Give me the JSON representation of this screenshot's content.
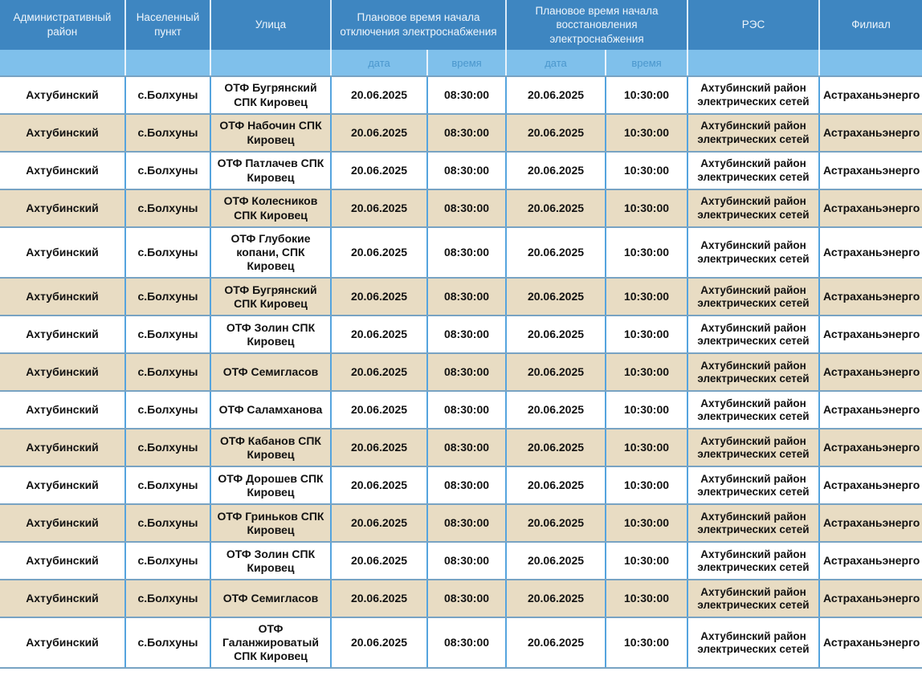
{
  "table": {
    "header": {
      "admin_district": "Административный район",
      "settlement": "Населенный пункт",
      "street": "Улица",
      "outage_group": "Плановое время начала отключения электроснабжения",
      "restore_group": "Плановое время начала восстановления электроснабжения",
      "res": "РЭС",
      "branch": "Филиал",
      "sub_date": "дата",
      "sub_time": "время"
    },
    "rows": [
      {
        "district": "Ахтубинский",
        "settlement": "с.Болхуны",
        "street": "ОТФ Бугрянский СПК Кировец",
        "off_date": "20.06.2025",
        "off_time": "08:30:00",
        "on_date": "20.06.2025",
        "on_time": "10:30:00",
        "res": "Ахтубинский район электрических сетей",
        "branch": "Астраханьэнерго"
      },
      {
        "district": "Ахтубинский",
        "settlement": "с.Болхуны",
        "street": "ОТФ Набочин СПК Кировец",
        "off_date": "20.06.2025",
        "off_time": "08:30:00",
        "on_date": "20.06.2025",
        "on_time": "10:30:00",
        "res": "Ахтубинский район электрических сетей",
        "branch": "Астраханьэнерго"
      },
      {
        "district": "Ахтубинский",
        "settlement": "с.Болхуны",
        "street": "ОТФ Патлачев СПК Кировец",
        "off_date": "20.06.2025",
        "off_time": "08:30:00",
        "on_date": "20.06.2025",
        "on_time": "10:30:00",
        "res": "Ахтубинский район электрических сетей",
        "branch": "Астраханьэнерго"
      },
      {
        "district": "Ахтубинский",
        "settlement": "с.Болхуны",
        "street": "ОТФ Колесников СПК Кировец",
        "off_date": "20.06.2025",
        "off_time": "08:30:00",
        "on_date": "20.06.2025",
        "on_time": "10:30:00",
        "res": "Ахтубинский район электрических сетей",
        "branch": "Астраханьэнерго"
      },
      {
        "district": "Ахтубинский",
        "settlement": "с.Болхуны",
        "street": "ОТФ Глубокие копани, СПК Кировец",
        "off_date": "20.06.2025",
        "off_time": "08:30:00",
        "on_date": "20.06.2025",
        "on_time": "10:30:00",
        "res": "Ахтубинский район электрических сетей",
        "branch": "Астраханьэнерго"
      },
      {
        "district": "Ахтубинский",
        "settlement": "с.Болхуны",
        "street": "ОТФ Бугрянский СПК Кировец",
        "off_date": "20.06.2025",
        "off_time": "08:30:00",
        "on_date": "20.06.2025",
        "on_time": "10:30:00",
        "res": "Ахтубинский район электрических сетей",
        "branch": "Астраханьэнерго"
      },
      {
        "district": "Ахтубинский",
        "settlement": "с.Болхуны",
        "street": "ОТФ Золин СПК Кировец",
        "off_date": "20.06.2025",
        "off_time": "08:30:00",
        "on_date": "20.06.2025",
        "on_time": "10:30:00",
        "res": "Ахтубинский район электрических сетей",
        "branch": "Астраханьэнерго"
      },
      {
        "district": "Ахтубинский",
        "settlement": "с.Болхуны",
        "street": "ОТФ Семигласов",
        "off_date": "20.06.2025",
        "off_time": "08:30:00",
        "on_date": "20.06.2025",
        "on_time": "10:30:00",
        "res": "Ахтубинский район электрических сетей",
        "branch": "Астраханьэнерго"
      },
      {
        "district": "Ахтубинский",
        "settlement": "с.Болхуны",
        "street": "ОТФ Саламханова",
        "off_date": "20.06.2025",
        "off_time": "08:30:00",
        "on_date": "20.06.2025",
        "on_time": "10:30:00",
        "res": "Ахтубинский район электрических сетей",
        "branch": "Астраханьэнерго"
      },
      {
        "district": "Ахтубинский",
        "settlement": "с.Болхуны",
        "street": "ОТФ Кабанов СПК Кировец",
        "off_date": "20.06.2025",
        "off_time": "08:30:00",
        "on_date": "20.06.2025",
        "on_time": "10:30:00",
        "res": "Ахтубинский район электрических сетей",
        "branch": "Астраханьэнерго"
      },
      {
        "district": "Ахтубинский",
        "settlement": "с.Болхуны",
        "street": "ОТФ Дорошев СПК Кировец",
        "off_date": "20.06.2025",
        "off_time": "08:30:00",
        "on_date": "20.06.2025",
        "on_time": "10:30:00",
        "res": "Ахтубинский район электрических сетей",
        "branch": "Астраханьэнерго"
      },
      {
        "district": "Ахтубинский",
        "settlement": "с.Болхуны",
        "street": "ОТФ Гриньков СПК Кировец",
        "off_date": "20.06.2025",
        "off_time": "08:30:00",
        "on_date": "20.06.2025",
        "on_time": "10:30:00",
        "res": "Ахтубинский район электрических сетей",
        "branch": "Астраханьэнерго"
      },
      {
        "district": "Ахтубинский",
        "settlement": "с.Болхуны",
        "street": "ОТФ Золин СПК Кировец",
        "off_date": "20.06.2025",
        "off_time": "08:30:00",
        "on_date": "20.06.2025",
        "on_time": "10:30:00",
        "res": "Ахтубинский район электрических сетей",
        "branch": "Астраханьэнерго"
      },
      {
        "district": "Ахтубинский",
        "settlement": "с.Болхуны",
        "street": "ОТФ Семигласов",
        "off_date": "20.06.2025",
        "off_time": "08:30:00",
        "on_date": "20.06.2025",
        "on_time": "10:30:00",
        "res": "Ахтубинский район электрических сетей",
        "branch": "Астраханьэнерго"
      },
      {
        "district": "Ахтубинский",
        "settlement": "с.Болхуны",
        "street": "ОТФ Галанжироватый СПК Кировец",
        "off_date": "20.06.2025",
        "off_time": "08:30:00",
        "on_date": "20.06.2025",
        "on_time": "10:30:00",
        "res": "Ахтубинский район электрических сетей",
        "branch": "Астраханьэнерго"
      }
    ]
  },
  "colors": {
    "header_bg": "#3e86c1",
    "header_text": "#eef5fb",
    "subheader_bg": "#7fc0eb",
    "subheader_text": "#4b97cd",
    "row_bg": "#ffffff",
    "row_alt_bg": "#e8dcc3",
    "border_vertical": "#55a4de",
    "border_horizontal": "#78a3c3"
  }
}
